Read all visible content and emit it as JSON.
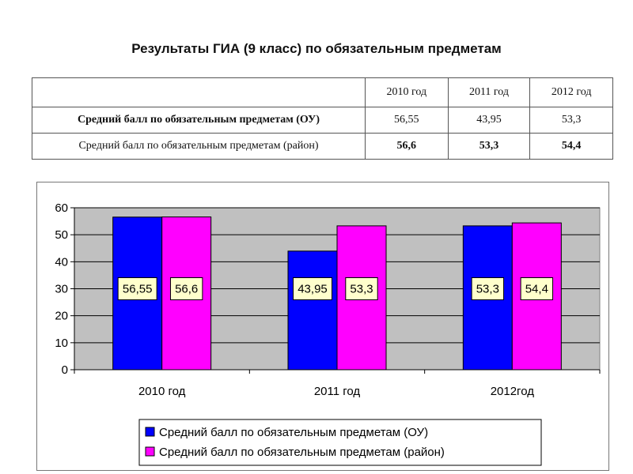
{
  "title": "Результаты ГИА (9 класс) по обязательным предметам",
  "table": {
    "headers": [
      "",
      "2010 год",
      "2011 год",
      "2012 год"
    ],
    "rows": [
      {
        "label": "Средний балл по обязательным предметам (ОУ)",
        "values": [
          "56,55",
          "43,95",
          "53,3"
        ]
      },
      {
        "label": "Средний балл по обязательным предметам (район)",
        "values": [
          "56,6",
          "53,3",
          "54,4"
        ]
      }
    ]
  },
  "chart_data": {
    "type": "bar",
    "categories": [
      "2010 год",
      "2011 год",
      "2012год"
    ],
    "series": [
      {
        "name": "Средний балл по обязательным предметам (ОУ)",
        "values": [
          56.55,
          43.95,
          53.3
        ],
        "labels": [
          "56,55",
          "43,95",
          "53,3"
        ],
        "color": "#0000FF"
      },
      {
        "name": "Средний балл по обязательным предметам (район)",
        "values": [
          56.6,
          53.3,
          54.4
        ],
        "labels": [
          "56,6",
          "53,3",
          "54,4"
        ],
        "color": "#FF00FF"
      }
    ],
    "ylim": [
      0,
      60
    ],
    "yticks": [
      "0",
      "10",
      "20",
      "30",
      "40",
      "50",
      "60"
    ],
    "plot_background": "#C0C0C0",
    "label_background": "#FFFFCC",
    "grid": true,
    "legend_position": "bottom"
  }
}
